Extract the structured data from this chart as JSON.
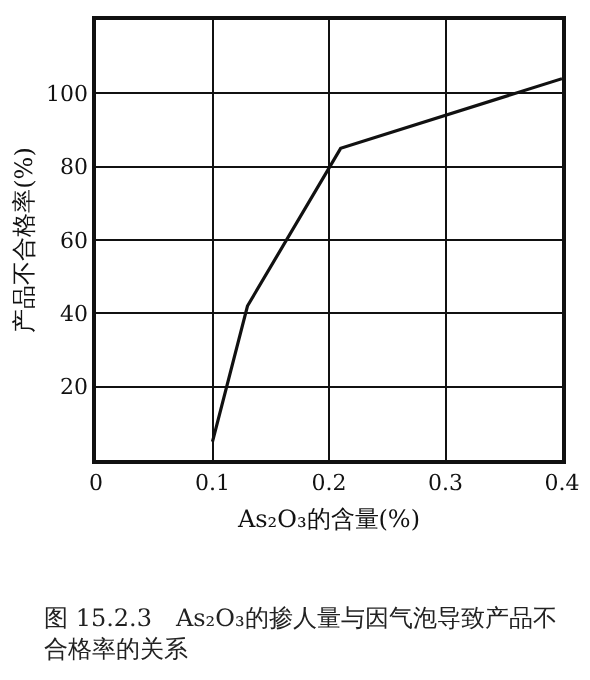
{
  "chart_data": {
    "type": "line",
    "x": [
      0.1,
      0.13,
      0.21,
      0.4
    ],
    "series": [
      {
        "color": "#111111",
        "values": [
          5,
          42,
          85,
          104
        ]
      }
    ],
    "xlabel": "As₂O₃的含量(%)",
    "ylabel": "产品不合格率(%)",
    "xlim": [
      0,
      0.4
    ],
    "xticks": [
      0,
      {
        "value": 0.1,
        "label": "0.1"
      },
      {
        "value": 0.2,
        "label": "0.2"
      },
      {
        "value": 0.3,
        "label": "0.3"
      },
      {
        "value": 0.4,
        "label": "0.4"
      }
    ],
    "ylim": [
      0,
      120
    ],
    "yticks": [
      20,
      40,
      60,
      80,
      100
    ],
    "grid": true,
    "marker": "none",
    "line_style": "solid",
    "annotations": [
      "图 15.2.3　As₂O₃的掺人量与因气泡导致产品不合格率的关系"
    ]
  }
}
